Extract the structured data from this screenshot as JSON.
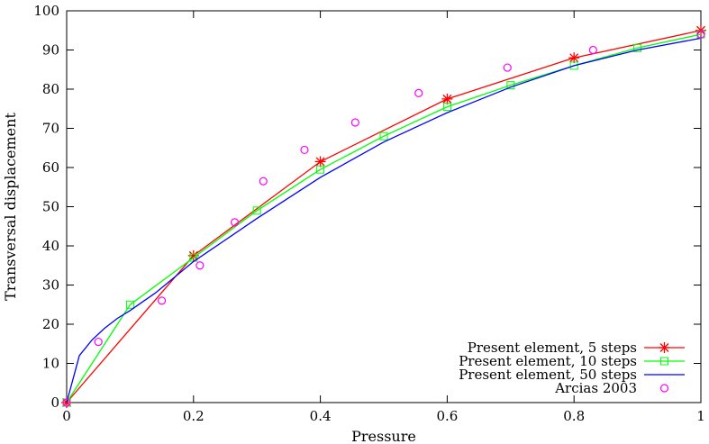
{
  "chart_data": {
    "type": "line",
    "title": "",
    "xlabel": "Pressure",
    "ylabel": "Transversal displacement",
    "xlim": [
      0,
      1
    ],
    "ylim": [
      0,
      100
    ],
    "x_ticks": [
      "0",
      "0.2",
      "0.4",
      "0.6",
      "0.8",
      "1"
    ],
    "y_ticks": [
      "0",
      "10",
      "20",
      "30",
      "40",
      "50",
      "60",
      "70",
      "80",
      "90",
      "100"
    ],
    "grid": false,
    "legend_position": "bottom-right",
    "series": [
      {
        "name": "Present element, 5 steps",
        "color": "#ff0000",
        "marker": "star",
        "x": [
          0,
          0.2,
          0.4,
          0.6,
          0.8,
          1.0
        ],
        "y": [
          0,
          37.5,
          61.5,
          77.5,
          88,
          95
        ]
      },
      {
        "name": "Present element, 10 steps",
        "color": "#00ff00",
        "marker": "square",
        "x": [
          0,
          0.1,
          0.2,
          0.3,
          0.4,
          0.5,
          0.6,
          0.7,
          0.8,
          0.9,
          1.0
        ],
        "y": [
          0,
          25,
          37,
          49,
          59.5,
          68,
          75.5,
          81,
          86,
          90.5,
          94
        ]
      },
      {
        "name": "Present element, 50 steps",
        "color": "#0000ff",
        "marker": "none",
        "x": [
          0,
          0.02,
          0.04,
          0.06,
          0.08,
          0.1,
          0.14,
          0.2,
          0.3,
          0.4,
          0.5,
          0.6,
          0.7,
          0.8,
          0.9,
          1.0
        ],
        "y": [
          0,
          12,
          16,
          19,
          21.5,
          23.5,
          28,
          36,
          47,
          57.5,
          66.5,
          74,
          80.5,
          86,
          90,
          93
        ]
      },
      {
        "name": "Arcias 2003",
        "color": "#ff00ff",
        "marker": "circle",
        "line": false,
        "x": [
          0,
          0.05,
          0.15,
          0.21,
          0.265,
          0.31,
          0.375,
          0.455,
          0.555,
          0.695,
          0.83,
          1.0
        ],
        "y": [
          0,
          15.5,
          26,
          35,
          46,
          56.5,
          64.5,
          71.5,
          79,
          85.5,
          90,
          94
        ]
      }
    ]
  }
}
